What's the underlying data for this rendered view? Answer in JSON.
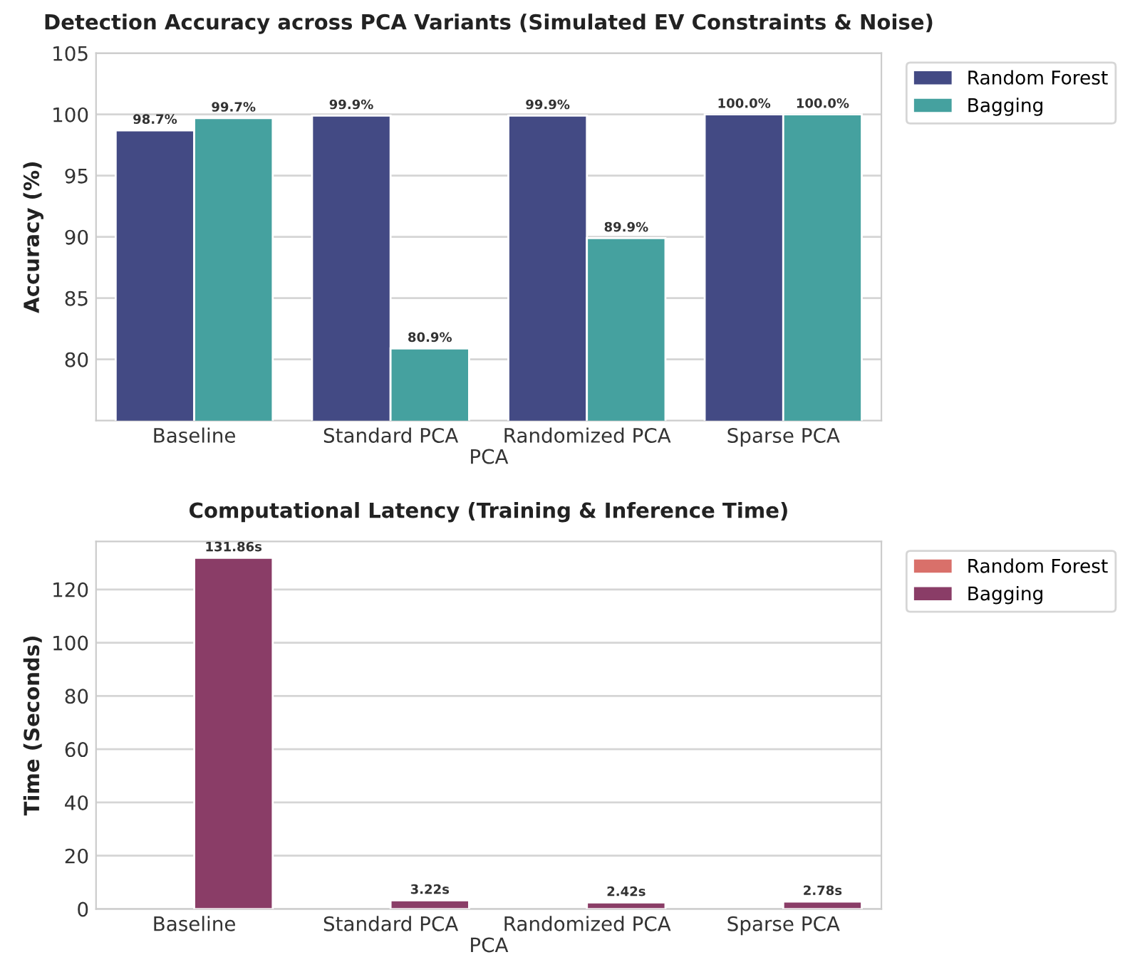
{
  "chart_data": [
    {
      "type": "bar",
      "title": "Detection Accuracy across PCA Variants (Simulated EV Constraints & Noise)",
      "xlabel": "PCA",
      "ylabel": "Accuracy (%)",
      "categories": [
        "Baseline",
        "Standard PCA",
        "Randomized PCA",
        "Sparse PCA"
      ],
      "series": [
        {
          "name": "Random Forest",
          "color": "#434a84",
          "values": [
            98.7,
            99.9,
            99.9,
            100.0
          ],
          "value_labels": [
            "98.7%",
            "99.9%",
            "99.9%",
            "100.0%"
          ]
        },
        {
          "name": "Bagging",
          "color": "#45a19f",
          "values": [
            99.7,
            80.9,
            89.9,
            100.0
          ],
          "value_labels": [
            "99.7%",
            "80.9%",
            "89.9%",
            "100.0%"
          ]
        }
      ],
      "ylim": [
        75,
        105
      ],
      "yticks": [
        80,
        85,
        90,
        95,
        100,
        105
      ],
      "grid": "y",
      "legend": "top right"
    },
    {
      "type": "bar",
      "title": "Computational Latency (Training & Inference Time)",
      "xlabel": "PCA",
      "ylabel": "Time (Seconds)",
      "categories": [
        "Baseline",
        "Standard PCA",
        "Randomized PCA",
        "Sparse PCA"
      ],
      "series": [
        {
          "name": "Random Forest",
          "color": "#d9706a",
          "values": [
            null,
            null,
            null,
            null
          ],
          "value_labels": [
            null,
            null,
            null,
            null
          ]
        },
        {
          "name": "Bagging",
          "color": "#8a3d67",
          "values": [
            131.86,
            3.22,
            2.42,
            2.78
          ],
          "value_labels": [
            "131.86s",
            "3.22s",
            "2.42s",
            "2.78s"
          ]
        }
      ],
      "ylim": [
        0,
        138
      ],
      "yticks": [
        0,
        20,
        40,
        60,
        80,
        100,
        120
      ],
      "grid": "y",
      "legend": "top right"
    }
  ]
}
